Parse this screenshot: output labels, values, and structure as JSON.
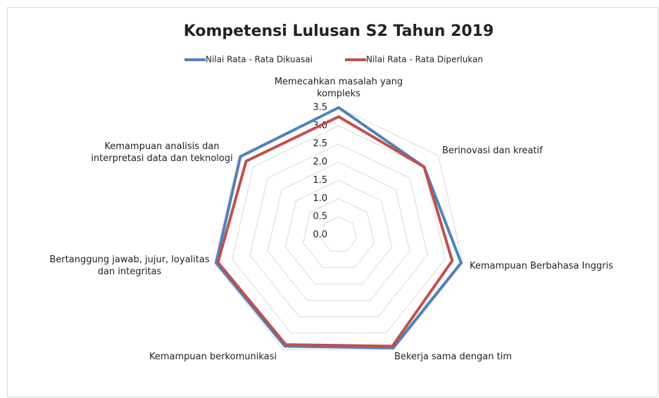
{
  "chart_data": {
    "type": "radar",
    "title": "Kompetensi Lulusan S2 Tahun 2019",
    "categories": [
      "Memecahkan masalah yang kompleks",
      "Berinovasi dan kreatif",
      "Kemampuan Berbahasa Inggris",
      "Bekerja sama dengan tim",
      "Kemampuan berkomunikasi",
      "Bertanggung jawab, jujur, loyalitas dan integritas",
      "Kemampuan analisis dan interpretasi data dan teknologi"
    ],
    "series": [
      {
        "name": "Nilai Rata - Rata Dikuasai",
        "color": "#4f81bd",
        "values": [
          3.5,
          3.0,
          3.45,
          3.45,
          3.4,
          3.45,
          3.45
        ]
      },
      {
        "name": "Nilai Rata - Rata Diperlukan",
        "color": "#c0504d",
        "values": [
          3.25,
          3.0,
          3.2,
          3.4,
          3.35,
          3.4,
          3.25
        ]
      }
    ],
    "ylim": [
      0,
      3.5
    ],
    "yticks": [
      {
        "value": 0,
        "label": "0.0"
      },
      0.5,
      {
        "value": 1,
        "label": "1.0"
      },
      1.5,
      {
        "value": 2,
        "label": "2.0"
      },
      2.5,
      {
        "value": 3,
        "label": "3.0"
      },
      3.5
    ],
    "grid": true,
    "legend": "top"
  }
}
